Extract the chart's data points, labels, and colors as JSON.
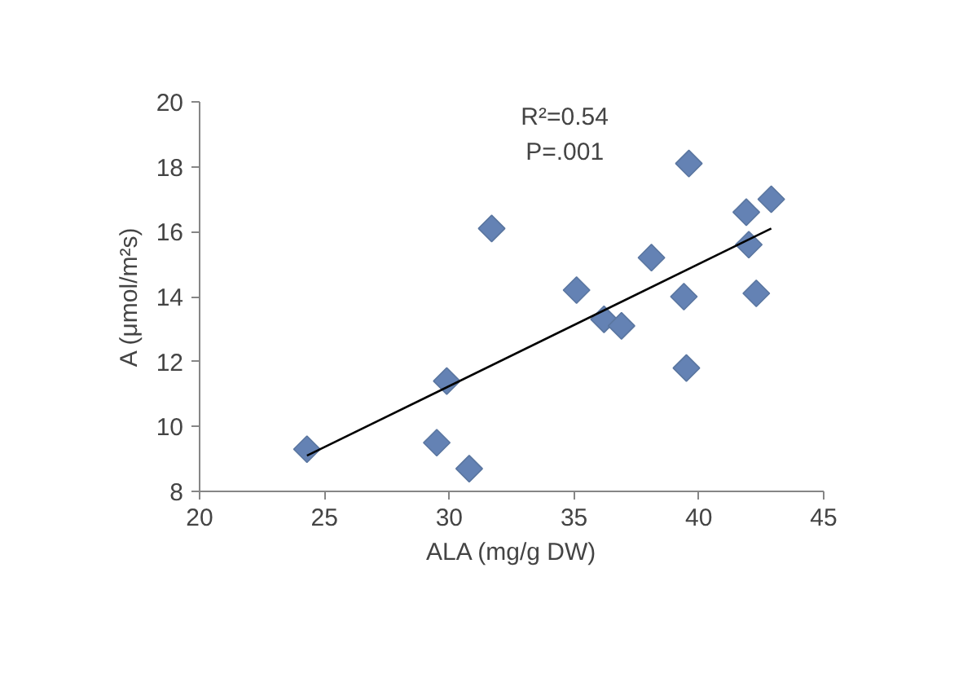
{
  "chart_data": {
    "type": "scatter",
    "xlabel": "ALA (mg/g DW)",
    "ylabel": "A (μmol/m²s)",
    "xlim": [
      20,
      45
    ],
    "xticks": [
      20,
      25,
      30,
      35,
      40,
      45
    ],
    "ylim": [
      8,
      20
    ],
    "yticks": [
      8,
      10,
      12,
      14,
      16,
      18,
      20
    ],
    "grid": false,
    "annotations": [
      "R²=0.54",
      "P=.001"
    ],
    "series": [
      {
        "marker": "diamond",
        "color": "#6482b4",
        "x": [
          24.3,
          29.5,
          30.8,
          29.9,
          31.7,
          35.1,
          36.2,
          36.9,
          38.1,
          39.4,
          39.5,
          39.6,
          41.9,
          42.0,
          42.3,
          42.9
        ],
        "values": [
          9.3,
          9.5,
          8.7,
          11.4,
          16.1,
          14.2,
          13.3,
          13.1,
          15.2,
          14.0,
          11.8,
          18.1,
          16.6,
          15.6,
          14.1,
          17.0
        ]
      },
      {
        "type": "line",
        "color": "#000000",
        "x": [
          24.3,
          42.9
        ],
        "values": [
          9.1,
          16.1
        ]
      }
    ]
  }
}
